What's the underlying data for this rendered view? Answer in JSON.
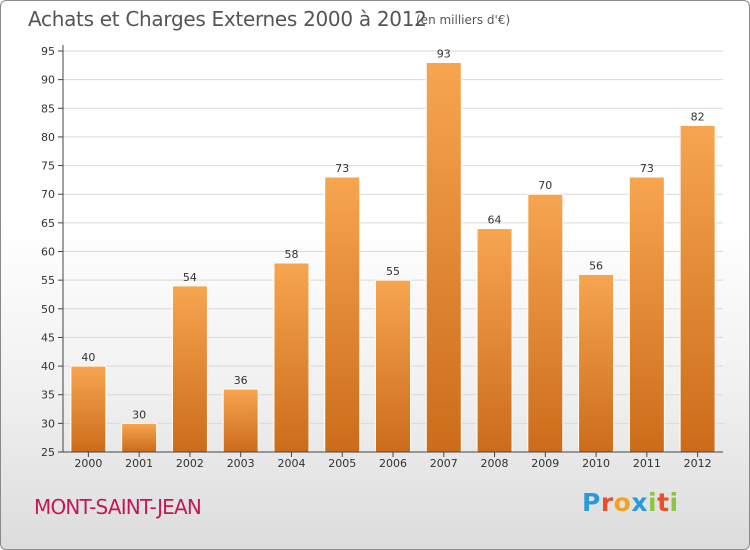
{
  "title": "Achats et Charges Externes 2000 à 2012",
  "subtitle": "(en milliers d'€)",
  "commune": "MONT-SAINT-JEAN",
  "logo": {
    "letters": [
      "P",
      "r",
      "o",
      "x",
      "i",
      "t",
      "i"
    ],
    "colors": [
      "#2b9bd6",
      "#e8502a",
      "#f4a21d",
      "#2b9bd6",
      "#8cc63e",
      "#e8502a",
      "#8cc63e"
    ]
  },
  "colors": {
    "bar_top": "#f7a550",
    "bar_bottom": "#cc6c1a",
    "bar_edge": "#ffffff",
    "axis": "#444444",
    "grid": "#d9d9d9",
    "text": "#333333"
  },
  "chart_data": {
    "type": "bar",
    "categories": [
      "2000",
      "2001",
      "2002",
      "2003",
      "2004",
      "2005",
      "2006",
      "2007",
      "2008",
      "2009",
      "2010",
      "2011",
      "2012"
    ],
    "values": [
      40,
      30,
      54,
      36,
      58,
      73,
      55,
      93,
      64,
      70,
      56,
      73,
      82
    ],
    "ylim": [
      25,
      95
    ],
    "yticks": [
      25,
      30,
      35,
      40,
      45,
      50,
      55,
      60,
      65,
      70,
      75,
      80,
      85,
      90,
      95
    ],
    "grid": true,
    "xlabel": "",
    "ylabel": ""
  }
}
